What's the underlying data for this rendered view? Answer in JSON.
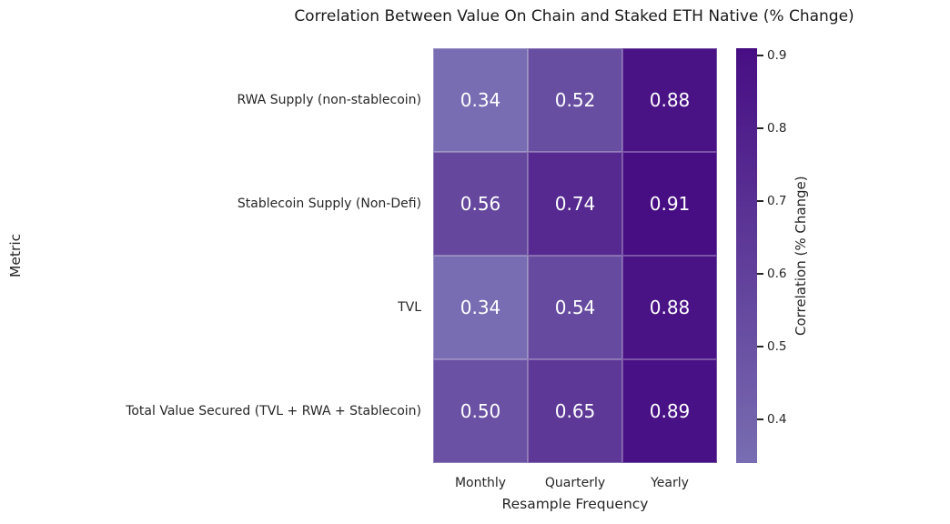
{
  "chart_data": {
    "type": "heatmap",
    "title": "Correlation Between Value On Chain and Staked ETH Native (% Change)",
    "xlabel": "Resample Frequency",
    "ylabel": "Metric",
    "columns": [
      "Monthly",
      "Quarterly",
      "Yearly"
    ],
    "rows": [
      "RWA Supply (non-stablecoin)",
      "Stablecoin Supply (Non-Defi)",
      "TVL",
      "Total Value Secured (TVL + RWA + Stablecoin)"
    ],
    "values": [
      [
        0.34,
        0.52,
        0.88
      ],
      [
        0.56,
        0.74,
        0.91
      ],
      [
        0.34,
        0.54,
        0.88
      ],
      [
        0.5,
        0.65,
        0.89
      ]
    ],
    "value_decimals": 2,
    "annotation_color": "#ffffff",
    "text_color": "#262626",
    "background_color": "#ffffff",
    "grid": false,
    "colorbar": {
      "label": "Correlation (% Change)",
      "ticks": [
        0.4,
        0.5,
        0.6,
        0.7,
        0.8,
        0.9
      ],
      "min": 0.34,
      "max": 0.91
    },
    "colormap": {
      "name": "Purples",
      "vmin": -1,
      "vmax": 1,
      "stops": [
        [
          252,
          251,
          253
        ],
        [
          239,
          237,
          245
        ],
        [
          218,
          218,
          235
        ],
        [
          188,
          189,
          220
        ],
        [
          158,
          154,
          200
        ],
        [
          128,
          125,
          186
        ],
        [
          106,
          81,
          163
        ],
        [
          84,
          39,
          143
        ],
        [
          63,
          0,
          125
        ]
      ]
    }
  }
}
